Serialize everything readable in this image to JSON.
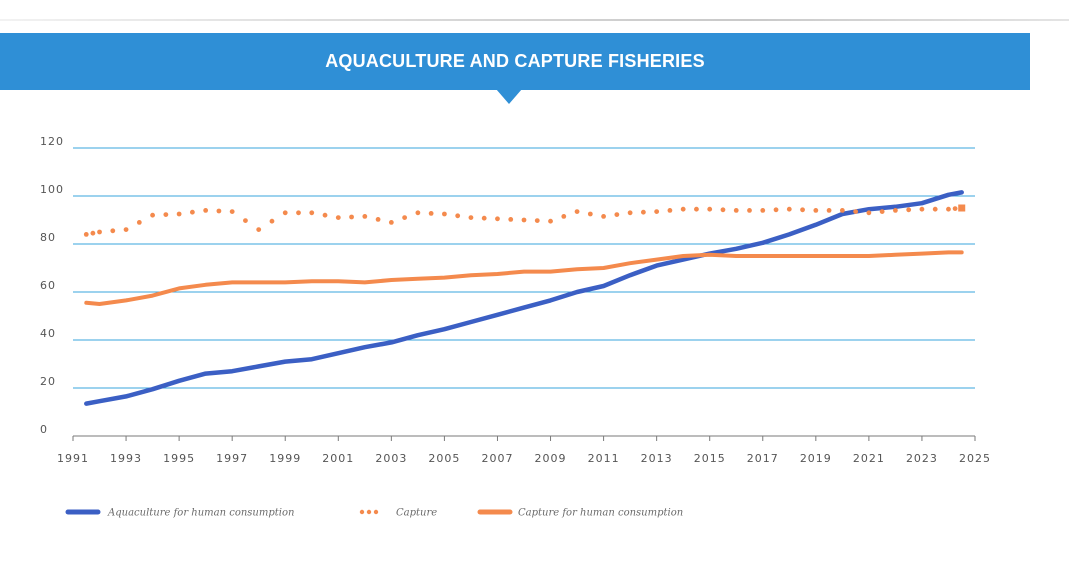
{
  "title": "AQUACULTURE AND CAPTURE FISHERIES",
  "colors": {
    "banner": "#2f8fd6",
    "gridline": "#39a5dd",
    "aquaculture": "#3b5fc4",
    "capture": "#f48a4d",
    "capture_human": "#f48a4d"
  },
  "chart_data": {
    "type": "line",
    "title": "AQUACULTURE AND CAPTURE FISHERIES",
    "xlabel": "",
    "ylabel": "",
    "xlim": [
      1991,
      2025
    ],
    "ylim": [
      0,
      120
    ],
    "yticks": [
      0,
      20,
      40,
      60,
      80,
      100,
      120
    ],
    "xticks": [
      1991,
      1993,
      1995,
      1997,
      1999,
      2001,
      2003,
      2005,
      2007,
      2009,
      2011,
      2013,
      2015,
      2017,
      2019,
      2021,
      2023,
      2025
    ],
    "grid": true,
    "legend_position": "bottom",
    "series": [
      {
        "name": "Aquaculture for human consumption",
        "style": "solid",
        "color": "#3b5fc4",
        "x": [
          1991.5,
          1992,
          1993,
          1994,
          1995,
          1996,
          1997,
          1998,
          1999,
          2000,
          2001,
          2002,
          2003,
          2004,
          2005,
          2006,
          2007,
          2008,
          2009,
          2010,
          2011,
          2012,
          2013,
          2014,
          2015,
          2016,
          2017,
          2018,
          2019,
          2020,
          2021,
          2022,
          2023,
          2024,
          2024.5
        ],
        "values": [
          13.5,
          14.5,
          16.5,
          19.5,
          23,
          26,
          27,
          29,
          31,
          32,
          34.5,
          37,
          39,
          42,
          44.5,
          47.5,
          50.5,
          53.5,
          56.5,
          60,
          62.5,
          67,
          71,
          73.5,
          76,
          78,
          80.5,
          84,
          88,
          92.5,
          94.5,
          95.5,
          97,
          100.5,
          101.5
        ]
      },
      {
        "name": "Capture",
        "style": "dotted",
        "color": "#f48a4d",
        "x": [
          1991.5,
          1992,
          1993,
          1994,
          1995,
          1996,
          1997,
          1998,
          1999,
          2000,
          2001,
          2002,
          2003,
          2004,
          2005,
          2006,
          2007,
          2008,
          2009,
          2010,
          2011,
          2012,
          2013,
          2014,
          2015,
          2016,
          2017,
          2018,
          2019,
          2020,
          2021,
          2022,
          2023,
          2024,
          2024.5
        ],
        "values": [
          84,
          85,
          86,
          92,
          92.5,
          94,
          93.5,
          86,
          93,
          93,
          91,
          91.5,
          89,
          93,
          92.5,
          91,
          90.5,
          90,
          89.5,
          93.5,
          91.5,
          93,
          93.5,
          94.5,
          94.5,
          94,
          94,
          94.5,
          94,
          94,
          93,
          94,
          94.5,
          94.5,
          95
        ]
      },
      {
        "name": "Capture for human consumption",
        "style": "solid",
        "color": "#f48a4d",
        "x": [
          1991.5,
          1992,
          1993,
          1994,
          1995,
          1996,
          1997,
          1998,
          1999,
          2000,
          2001,
          2002,
          2003,
          2004,
          2005,
          2006,
          2007,
          2008,
          2009,
          2010,
          2011,
          2012,
          2013,
          2014,
          2015,
          2016,
          2017,
          2018,
          2019,
          2020,
          2021,
          2022,
          2023,
          2024,
          2024.5
        ],
        "values": [
          55.5,
          55,
          56.5,
          58.5,
          61.5,
          63,
          64,
          64,
          64,
          64.5,
          64.5,
          64,
          65,
          65.5,
          66,
          67,
          67.5,
          68.5,
          68.5,
          69.5,
          70,
          72,
          73.5,
          75,
          75.5,
          75,
          75,
          75,
          75,
          75,
          75,
          75.5,
          76,
          76.5,
          76.5
        ]
      }
    ]
  }
}
